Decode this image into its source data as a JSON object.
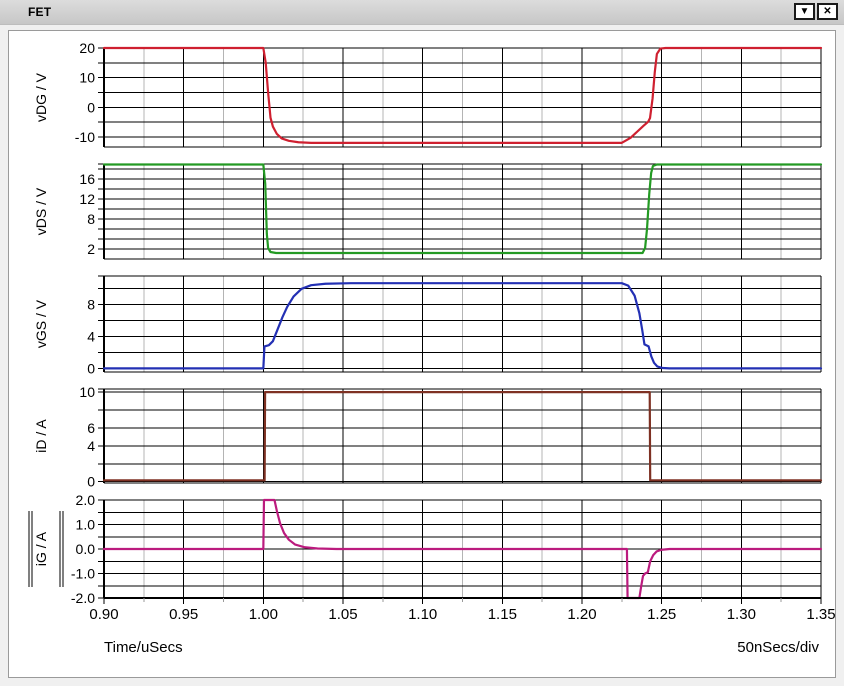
{
  "window": {
    "title": "FET",
    "dropdown_icon": "▼",
    "close_icon": "✕"
  },
  "footer": {
    "x_axis_label": "Time/uSecs",
    "x_scale_label": "50nSecs/div"
  },
  "chart_data": {
    "type": "line",
    "x": {
      "label": "Time/uSecs",
      "per_division": "50nSecs/div",
      "min": 0.9,
      "max": 1.35,
      "major_step": 0.05,
      "minor_step": 0.025,
      "tick_labels": [
        "0.90",
        "0.95",
        "1.00",
        "1.05",
        "1.10",
        "1.15",
        "1.20",
        "1.25",
        "1.30",
        "1.35"
      ],
      "grid": true
    },
    "panels": [
      {
        "name": "vDG",
        "ylabel": "vDG / V",
        "color": "#cf2030",
        "selected": false,
        "ymin": -13.4,
        "ymax": 20,
        "gridlines": [
          20,
          15,
          10,
          5,
          0,
          -5,
          -10
        ],
        "tick_labels": [
          {
            "v": 20,
            "t": "20"
          },
          {
            "v": 10,
            "t": "10"
          },
          {
            "v": 0,
            "t": "0"
          },
          {
            "v": -10,
            "t": "-10"
          }
        ],
        "points": [
          [
            0.9,
            20
          ],
          [
            1.0,
            20
          ],
          [
            1.0015,
            15
          ],
          [
            1.003,
            5
          ],
          [
            1.0045,
            -3.5
          ],
          [
            1.006,
            -6.5
          ],
          [
            1.0085,
            -9
          ],
          [
            1.0115,
            -10.5
          ],
          [
            1.016,
            -11.3
          ],
          [
            1.022,
            -11.8
          ],
          [
            1.03,
            -12
          ],
          [
            1.225,
            -12
          ],
          [
            1.2305,
            -10.3
          ],
          [
            1.2345,
            -8.3
          ],
          [
            1.2385,
            -6.3
          ],
          [
            1.2415,
            -4.9
          ],
          [
            1.2427,
            -3.6
          ],
          [
            1.2443,
            3
          ],
          [
            1.2457,
            12
          ],
          [
            1.247,
            18
          ],
          [
            1.2492,
            19.8
          ],
          [
            1.2525,
            20
          ],
          [
            1.35,
            20
          ]
        ]
      },
      {
        "name": "vDS",
        "ylabel": "vDS / V",
        "color": "#249a24",
        "selected": false,
        "ymin": 0,
        "ymax": 19,
        "gridlines": [
          18,
          16,
          14,
          12,
          10,
          8,
          6,
          4,
          2
        ],
        "tick_labels": [
          {
            "v": 16,
            "t": "16"
          },
          {
            "v": 12,
            "t": "12"
          },
          {
            "v": 8,
            "t": "8"
          },
          {
            "v": 2,
            "t": "2"
          }
        ],
        "points": [
          [
            0.9,
            18.9
          ],
          [
            1.0,
            18.9
          ],
          [
            1.0012,
            15
          ],
          [
            1.0022,
            5
          ],
          [
            1.003,
            2.2
          ],
          [
            1.0045,
            1.4
          ],
          [
            1.008,
            1.2
          ],
          [
            1.238,
            1.2
          ],
          [
            1.2396,
            2.2
          ],
          [
            1.2408,
            6
          ],
          [
            1.2422,
            13
          ],
          [
            1.2434,
            17.2
          ],
          [
            1.2445,
            18.6
          ],
          [
            1.247,
            18.9
          ],
          [
            1.35,
            18.9
          ]
        ]
      },
      {
        "name": "vGS",
        "ylabel": "vGS / V",
        "color": "#2330b4",
        "selected": false,
        "ymin": -0.45,
        "ymax": 11.55,
        "gridlines": [
          10,
          8,
          6,
          4,
          2,
          0
        ],
        "tick_labels": [
          {
            "v": 8,
            "t": "8"
          },
          {
            "v": 4,
            "t": "4"
          },
          {
            "v": 0,
            "t": "0"
          }
        ],
        "points": [
          [
            0.9,
            0
          ],
          [
            1.0,
            0
          ],
          [
            1.0007,
            2.75
          ],
          [
            1.0035,
            2.9
          ],
          [
            1.006,
            3.4
          ],
          [
            1.009,
            4.9
          ],
          [
            1.012,
            6.4
          ],
          [
            1.015,
            7.7
          ],
          [
            1.019,
            9
          ],
          [
            1.024,
            9.95
          ],
          [
            1.03,
            10.4
          ],
          [
            1.039,
            10.58
          ],
          [
            1.055,
            10.65
          ],
          [
            1.225,
            10.65
          ],
          [
            1.229,
            10.35
          ],
          [
            1.233,
            9.1
          ],
          [
            1.236,
            6.9
          ],
          [
            1.2378,
            4.8
          ],
          [
            1.2392,
            3.0
          ],
          [
            1.2418,
            2.75
          ],
          [
            1.2435,
            1.5
          ],
          [
            1.2452,
            0.7
          ],
          [
            1.2472,
            0.25
          ],
          [
            1.2505,
            0.05
          ],
          [
            1.255,
            0
          ],
          [
            1.35,
            0
          ]
        ]
      },
      {
        "name": "iD",
        "ylabel": "iD / A",
        "color": "#7e3123",
        "selected": false,
        "ymin": -0.15,
        "ymax": 10.35,
        "gridlines": [
          10,
          8,
          6,
          4,
          2,
          0
        ],
        "tick_labels": [
          {
            "v": 10,
            "t": "10"
          },
          {
            "v": 6,
            "t": "6"
          },
          {
            "v": 4,
            "t": "4"
          },
          {
            "v": 0,
            "t": "0"
          }
        ],
        "points": [
          [
            0.9,
            0.15
          ],
          [
            1.0008,
            0.15
          ],
          [
            1.0011,
            10
          ],
          [
            1.2425,
            10
          ],
          [
            1.2428,
            0.15
          ],
          [
            1.35,
            0.15
          ]
        ]
      },
      {
        "name": "iG",
        "ylabel": "iG / A",
        "color": "#bb1b7e",
        "selected": true,
        "ymin": -2.0,
        "ymax": 2.0,
        "gridlines": [
          2,
          1.5,
          1,
          0.5,
          0,
          -0.5,
          -1,
          -1.5,
          -2
        ],
        "tick_labels": [
          {
            "v": 2,
            "t": "2.0"
          },
          {
            "v": 1,
            "t": "1.0"
          },
          {
            "v": 0,
            "t": "0.0"
          },
          {
            "v": -1,
            "t": "-1.0"
          },
          {
            "v": -2,
            "t": "-2.0"
          }
        ],
        "points": [
          [
            0.9,
            0
          ],
          [
            1.0,
            0
          ],
          [
            1.0004,
            2
          ],
          [
            1.007,
            2
          ],
          [
            1.0085,
            1.55
          ],
          [
            1.0105,
            1.05
          ],
          [
            1.013,
            0.65
          ],
          [
            1.016,
            0.38
          ],
          [
            1.02,
            0.18
          ],
          [
            1.026,
            0.07
          ],
          [
            1.034,
            0.02
          ],
          [
            1.046,
            0
          ],
          [
            1.2282,
            0
          ],
          [
            1.2286,
            -2
          ],
          [
            1.236,
            -2
          ],
          [
            1.2372,
            -1.5
          ],
          [
            1.2383,
            -1.1
          ],
          [
            1.2396,
            -1.0
          ],
          [
            1.2413,
            -0.95
          ],
          [
            1.2428,
            -0.5
          ],
          [
            1.2447,
            -0.25
          ],
          [
            1.2468,
            -0.1
          ],
          [
            1.25,
            -0.03
          ],
          [
            1.255,
            0
          ],
          [
            1.35,
            0
          ]
        ]
      }
    ],
    "colors": {
      "grid_major": "#000000",
      "grid_minor": "#b4b4b4",
      "background": "#ffffff"
    }
  }
}
